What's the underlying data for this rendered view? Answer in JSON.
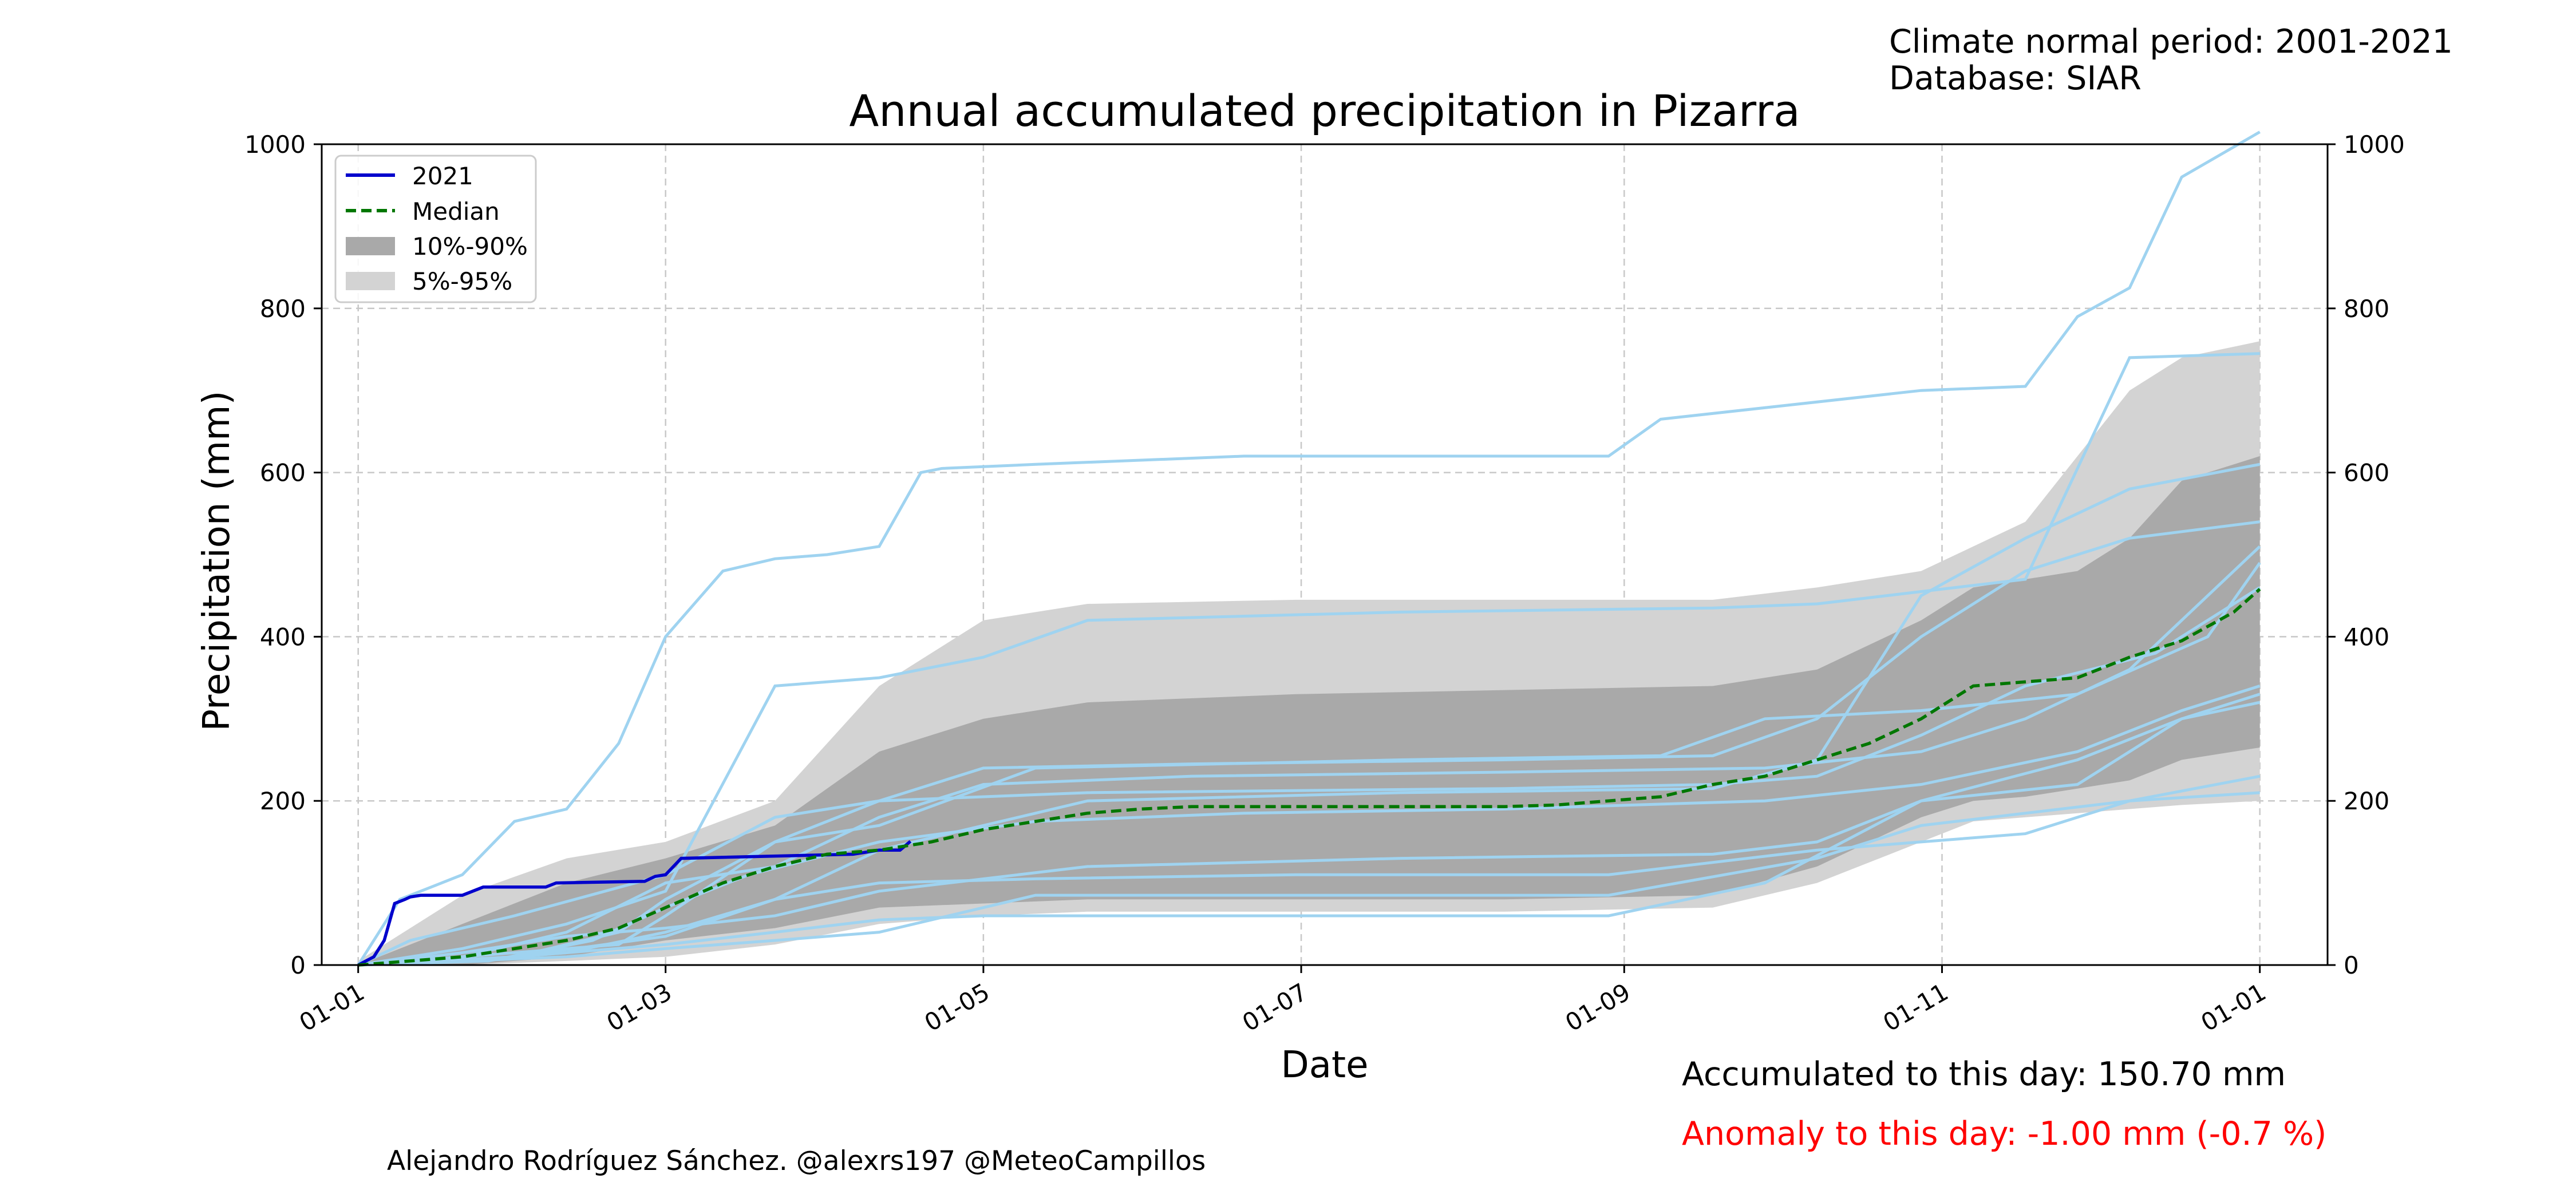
{
  "header": {
    "climate_period": "Climate normal period: 2001-2021",
    "database": "Database: SIAR"
  },
  "footer": {
    "credit": "Alejandro Rodríguez Sánchez. @alexrs197 @MeteoCampillos",
    "accumulated": "Accumulated to this day: 150.70 mm",
    "anomaly": "Anomaly to this day: -1.00 mm (-0.7 %)"
  },
  "colors": {
    "current_year": "#0000cc",
    "median": "#007700",
    "band_10_90": "#a9a9a9",
    "band_5_95": "#d3d3d3",
    "historical_years": "#9fd3f0",
    "anomaly": "#ff0000",
    "grid": "#c8c8c8"
  },
  "chart_data": {
    "type": "line",
    "title": "Annual accumulated precipitation in Pizarra",
    "xlabel": "Date",
    "ylabel": "Precipitation (mm)",
    "x_unit": "day_of_year",
    "xlim": [
      -7,
      378
    ],
    "ylim": [
      0,
      1000
    ],
    "x_ticks": [
      {
        "day": 0,
        "label": "01-01"
      },
      {
        "day": 59,
        "label": "01-03"
      },
      {
        "day": 120,
        "label": "01-05"
      },
      {
        "day": 181,
        "label": "01-07"
      },
      {
        "day": 243,
        "label": "01-09"
      },
      {
        "day": 304,
        "label": "01-11"
      },
      {
        "day": 365,
        "label": "01-01"
      }
    ],
    "y_ticks": [
      0,
      200,
      400,
      600,
      800,
      1000
    ],
    "grid": true,
    "legend_position": "top-left",
    "legend": [
      "2021",
      "Median",
      "10%-90%",
      "5%-95%"
    ],
    "series": [
      {
        "name": "2021",
        "x": [
          0,
          3,
          5,
          7,
          9,
          10,
          12,
          20,
          24,
          36,
          38,
          55,
          57,
          59,
          62,
          95,
          97,
          100,
          104,
          106
        ],
        "y": [
          0,
          10,
          30,
          75,
          80,
          83,
          85,
          85,
          95,
          95,
          100,
          102,
          108,
          110,
          130,
          135,
          137,
          140,
          140,
          150.7
        ]
      },
      {
        "name": "Median",
        "x": [
          0,
          20,
          30,
          40,
          50,
          59,
          70,
          80,
          90,
          100,
          110,
          120,
          130,
          140,
          150,
          160,
          190,
          220,
          230,
          240,
          250,
          260,
          270,
          280,
          290,
          300,
          310,
          320,
          330,
          340,
          350,
          360,
          365
        ],
        "y": [
          0,
          10,
          20,
          30,
          45,
          70,
          100,
          120,
          135,
          140,
          150,
          165,
          175,
          185,
          190,
          193,
          193,
          193,
          195,
          200,
          205,
          220,
          230,
          250,
          270,
          300,
          340,
          345,
          350,
          375,
          395,
          430,
          458
        ]
      }
    ],
    "bands": [
      {
        "name": "5%-95%",
        "x": [
          0,
          20,
          40,
          59,
          80,
          100,
          120,
          140,
          180,
          220,
          260,
          280,
          300,
          310,
          320,
          330,
          340,
          350,
          365
        ],
        "low": [
          0,
          0,
          5,
          10,
          25,
          50,
          60,
          65,
          65,
          65,
          70,
          100,
          150,
          175,
          180,
          185,
          190,
          195,
          200
        ],
        "high": [
          5,
          85,
          130,
          150,
          200,
          340,
          420,
          440,
          445,
          445,
          445,
          460,
          480,
          510,
          540,
          620,
          700,
          740,
          760
        ]
      },
      {
        "name": "10%-90%",
        "x": [
          0,
          20,
          40,
          59,
          80,
          100,
          120,
          140,
          180,
          220,
          260,
          280,
          300,
          310,
          320,
          330,
          340,
          350,
          365
        ],
        "low": [
          0,
          0,
          10,
          30,
          45,
          70,
          75,
          80,
          80,
          80,
          85,
          120,
          180,
          200,
          205,
          215,
          225,
          250,
          265
        ],
        "high": [
          0,
          50,
          100,
          130,
          170,
          260,
          300,
          320,
          330,
          335,
          340,
          360,
          420,
          460,
          470,
          480,
          520,
          590,
          620
        ]
      }
    ],
    "historical_years": [
      {
        "x": [
          0,
          8,
          20,
          30,
          40,
          50,
          59,
          70,
          80,
          90,
          100,
          108,
          112,
          130,
          170,
          200,
          240,
          250,
          300,
          320,
          330,
          340,
          350,
          365
        ],
        "y": [
          0,
          80,
          110,
          175,
          190,
          270,
          400,
          480,
          495,
          500,
          510,
          600,
          605,
          610,
          620,
          620,
          620,
          665,
          700,
          705,
          790,
          825,
          960,
          1015
        ]
      },
      {
        "x": [
          0,
          20,
          40,
          59,
          80,
          100,
          120,
          140,
          200,
          260,
          280,
          300,
          320,
          340,
          365
        ],
        "y": [
          0,
          20,
          50,
          90,
          340,
          350,
          375,
          420,
          430,
          435,
          440,
          455,
          470,
          740,
          745
        ]
      },
      {
        "x": [
          0,
          20,
          40,
          59,
          80,
          100,
          140,
          200,
          260,
          280,
          300,
          320,
          340,
          365
        ],
        "y": [
          0,
          5,
          15,
          40,
          80,
          140,
          200,
          210,
          215,
          250,
          450,
          520,
          580,
          610
        ]
      },
      {
        "x": [
          0,
          30,
          50,
          59,
          80,
          100,
          120,
          160,
          220,
          260,
          280,
          300,
          320,
          340,
          365
        ],
        "y": [
          0,
          15,
          25,
          60,
          150,
          200,
          240,
          245,
          250,
          255,
          300,
          400,
          480,
          520,
          540
        ]
      },
      {
        "x": [
          0,
          20,
          40,
          59,
          80,
          100,
          120,
          160,
          220,
          270,
          300,
          320,
          340,
          365
        ],
        "y": [
          0,
          10,
          40,
          100,
          120,
          180,
          220,
          230,
          235,
          240,
          260,
          300,
          360,
          510
        ]
      },
      {
        "x": [
          0,
          25,
          45,
          59,
          75,
          100,
          130,
          170,
          220,
          270,
          300,
          330,
          350,
          365
        ],
        "y": [
          0,
          5,
          30,
          70,
          110,
          150,
          175,
          185,
          190,
          200,
          220,
          260,
          310,
          340
        ]
      },
      {
        "x": [
          0,
          20,
          40,
          59,
          80,
          100,
          140,
          200,
          260,
          280,
          300,
          330,
          350,
          365
        ],
        "y": [
          0,
          15,
          35,
          45,
          60,
          90,
          120,
          130,
          135,
          150,
          200,
          250,
          300,
          330
        ]
      },
      {
        "x": [
          0,
          20,
          40,
          59,
          80,
          100,
          120,
          180,
          240,
          270,
          300,
          330,
          350,
          365
        ],
        "y": [
          0,
          5,
          15,
          25,
          40,
          55,
          60,
          60,
          60,
          100,
          200,
          220,
          300,
          320
        ]
      },
      {
        "x": [
          0,
          30,
          59,
          80,
          100,
          130,
          180,
          240,
          280,
          300,
          320,
          340,
          365
        ],
        "y": [
          0,
          10,
          35,
          80,
          100,
          105,
          110,
          110,
          140,
          150,
          160,
          200,
          230
        ]
      },
      {
        "x": [
          0,
          20,
          40,
          59,
          80,
          100,
          130,
          180,
          240,
          280,
          300,
          340,
          365
        ],
        "y": [
          0,
          5,
          10,
          20,
          30,
          40,
          85,
          85,
          85,
          130,
          170,
          200,
          210
        ]
      },
      {
        "x": [
          0,
          10,
          30,
          59,
          80,
          100,
          140,
          220,
          260,
          280,
          300,
          320,
          345,
          365
        ],
        "y": [
          0,
          30,
          60,
          110,
          180,
          200,
          210,
          215,
          220,
          230,
          280,
          340,
          380,
          460
        ]
      },
      {
        "x": [
          0,
          30,
          50,
          59,
          80,
          100,
          130,
          200,
          250,
          270,
          300,
          330,
          355,
          365
        ],
        "y": [
          0,
          10,
          40,
          80,
          150,
          170,
          240,
          250,
          255,
          300,
          310,
          330,
          400,
          490
        ]
      }
    ]
  }
}
